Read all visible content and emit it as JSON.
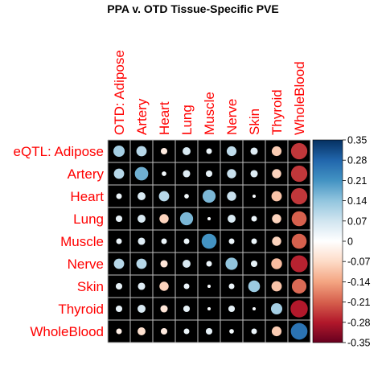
{
  "chart_data": {
    "type": "heatmap",
    "title": "PPA v. OTD Tissue-Specific PVE",
    "row_labels": [
      "eQTL: Adipose",
      "Artery",
      "Heart",
      "Lung",
      "Muscle",
      "Nerve",
      "Skin",
      "Thyroid",
      "WholeBlood"
    ],
    "col_labels": [
      "OTD: Adipose",
      "Artery",
      "Heart",
      "Lung",
      "Muscle",
      "Nerve",
      "Skin",
      "Thyroid",
      "WholeBlood"
    ],
    "values": [
      [
        0.12,
        0.1,
        -0.04,
        0.06,
        0.03,
        0.09,
        0.05,
        -0.09,
        -0.25
      ],
      [
        0.1,
        0.17,
        0.02,
        0.05,
        0.04,
        0.08,
        0.05,
        -0.08,
        -0.25
      ],
      [
        0.03,
        0.06,
        0.1,
        0.02,
        0.16,
        0.08,
        0.01,
        -0.1,
        -0.25
      ],
      [
        0.04,
        0.06,
        -0.08,
        0.16,
        0.01,
        0.06,
        0.03,
        -0.08,
        -0.21
      ],
      [
        0.03,
        0.05,
        0.03,
        0.03,
        0.21,
        0.03,
        0.03,
        -0.08,
        -0.21
      ],
      [
        0.1,
        0.1,
        -0.05,
        0.06,
        0.03,
        0.14,
        0.04,
        -0.11,
        -0.27
      ],
      [
        0.04,
        0.05,
        -0.08,
        0.03,
        0.01,
        0.03,
        0.13,
        -0.1,
        -0.2
      ],
      [
        0.04,
        0.06,
        -0.05,
        0.04,
        0.01,
        0.04,
        0.01,
        0.12,
        -0.28
      ],
      [
        -0.03,
        -0.06,
        -0.04,
        0.03,
        0.04,
        0.02,
        0.03,
        -0.09,
        0.26
      ]
    ],
    "legend": {
      "type": "colorbar",
      "placement": "right",
      "ticks": [
        "0.35",
        "0.28",
        "0.21",
        "0.14",
        "0.07",
        "0",
        "-0.07",
        "-0.14",
        "-0.21",
        "-0.28",
        "-0.35"
      ],
      "range": [
        -0.35,
        0.35
      ]
    },
    "label_color": "#ff0000",
    "cell_background": "#000000",
    "grid_color": "#bfbfbf",
    "color_scale": [
      "#67001f",
      "#b2182b",
      "#d6604d",
      "#f4a582",
      "#fddbc7",
      "#ffffff",
      "#d1e5f0",
      "#92c5de",
      "#4393c3",
      "#2166ac",
      "#053061"
    ]
  }
}
